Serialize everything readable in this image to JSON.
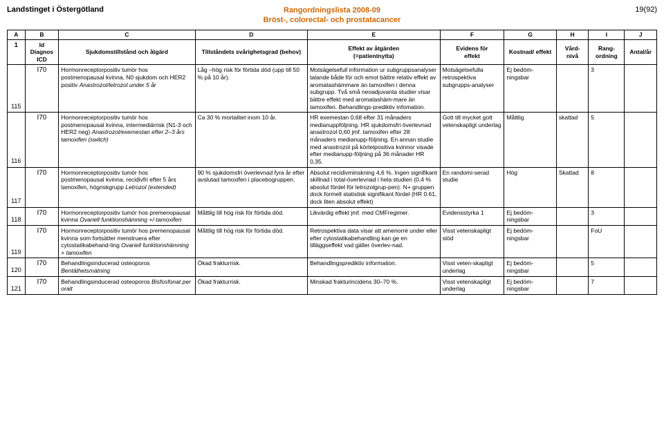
{
  "header": {
    "left": "Landstinget i Östergötland",
    "center_line1": "Rangordningslista 2008-09",
    "center_line2": "Bröst-, colorectal- och prostatacancer",
    "right": "19(92)"
  },
  "letters": [
    "A",
    "B",
    "C",
    "D",
    "E",
    "F",
    "G",
    "H",
    "I",
    "J"
  ],
  "head_row_num": "1",
  "headers": {
    "b1": "Id",
    "b2": "Diagnos",
    "b3": "ICD",
    "c": "Sjukdomstillstånd och åtgärd",
    "d": "Tillståndets svårighetsgrad (behov)",
    "e1": "Effekt av åtgärden",
    "e2": "(=patientnytta)",
    "f1": "Evidens för",
    "f2": "effekt",
    "g": "Kostnad/ effekt",
    "h1": "Vård-",
    "h2": "nivå",
    "i1": "Rang-",
    "i2": "ordning",
    "j": "Antal/år"
  },
  "rows": [
    {
      "num": "115",
      "icd": "I70",
      "c_plain": "Hormonreceptorpositiv tumör hos postmenopausal kvinna, N0 sjukdom och HER2 positiv ",
      "c_italic": "Anastrozol/letrozol under 5 år",
      "d": "Låg –hög risk för förtida död (upp till 50 % på 10 år).",
      "e": "Motsägelsefull information ur subgruppsanalyser talande både för och emot bättre relativ effekt av aromatashämmare än tamoxifen i denna subgrupp. Två små neoadjuvanta studier visar bättre effekt med aromatashäm-mare än tamoxifen. Behandlings-prediktiv infomation.",
      "f": "Motsägelsefulla retrospektiva subgrupps-analyser",
      "g": "Ej bedöm-ningsbar",
      "h": "",
      "i": "3",
      "j": ""
    },
    {
      "num": "116",
      "icd": "I70",
      "c_plain": "Hormonreceptorpositiv tumör hos postmenopausal kvinna, intermediärrisk (N1-3 och HER2 neg) ",
      "c_italic": "Anastrozol/exemestan efter 2–3 års tamoxifen (switch)",
      "d": "Ca 30 % mortalitet inom 10 år.",
      "e": "HR exemestan 0,68 efter 31 månaders medianuppföljning. HR sjukdomsfri överlevnad anastrozol 0,60 jmf. tamoxifen efter 28 månaders medianupp-följning. En annan studie med anastrozol på körtelpositiva kvinnor visade efter medianupp-följning på 36 månader HR 0,35.",
      "f": "Gott till mycket gott vetenskapligt underlag",
      "g": "Måttlig",
      "h": "skattad",
      "i": "5",
      "j": ""
    },
    {
      "num": "117",
      "icd": "I70",
      "c_plain": "Hormonreceptorpositiv tumör hos postmenopausal kvinna, recidivfri efter 5 års tamoxifen, högriskgrupp ",
      "c_italic": "Letrozol (extended)",
      "d": "90 % sjukdomsfri överlevnad fyra år efter avslutad tamoxifen i placebogruppen.",
      "e": "Absolut recidivminskning 4,6 %. Ingen signifikant skillnad i total-överlevnad i hela studien (0,4 % absolut fördel för letrozolgrup-pen). N+ gruppen dock formell statistisk signifikant fördel (HR 0.61, dock liten absolut effekt)",
      "f": "En randomi-serad studie",
      "g": "Hög",
      "h": "Skattad",
      "i": "8",
      "j": ""
    },
    {
      "num": "118",
      "icd": "I70",
      "c_plain": "Hormonreceptorpositiv tumör hos premenopausal kvinna ",
      "c_italic": "Ovariell funktionshämning +/-tamoxifen",
      "d": "Måttlig till hög risk för förtida död.",
      "e": "Likvärdig effekt jmf. med CMFregimer.",
      "f": "Evidensstyrka 1",
      "g": "Ej bedöm-ningsbar",
      "h": "",
      "i": "3",
      "j": ""
    },
    {
      "num": "119",
      "icd": "I70",
      "c_plain": "Hormonreceptorpositiv tumör hos premenopausal kvinna som fortsätter menstruera efter cytostatikabehand-ling ",
      "c_italic": "Ovariell funktionshämning + tamoxifen",
      "d": "Måttlig till hög risk för förtida död.",
      "e": "Retrospektiva data visar att amenorré under eller efter cytostatikabehandling kan ge en tilläggseffekt vad gäller överlev-nad.",
      "f": "Visst vetenskapligt stöd",
      "g": "Ej bedöm-ningsbar",
      "h": "",
      "i": "FoU",
      "j": ""
    },
    {
      "num": "120",
      "icd": "I70",
      "c_plain": "Behandlingsinducerad osteoporos ",
      "c_italic": "Bentäthetsmätning",
      "d": "Ökad frakturrisk.",
      "e": "Behandlingsprediktiv information.",
      "f": "Visst veten-skapligt underlag",
      "g": "Ej bedöm-ningsbar",
      "h": "",
      "i": "5",
      "j": ""
    },
    {
      "num": "121",
      "icd": "I70",
      "c_plain": "Behandlingsinducerad osteoporos ",
      "c_italic": "Bisfosfonat per oralt",
      "d": "Ökad frakturrisk.",
      "e": "Minskad frakturincidens 30–70 %.",
      "f": "Visst vetenskapligt underlag",
      "g": "Ej bedöm-ningsbar",
      "h": "",
      "i": "7",
      "j": ""
    }
  ]
}
